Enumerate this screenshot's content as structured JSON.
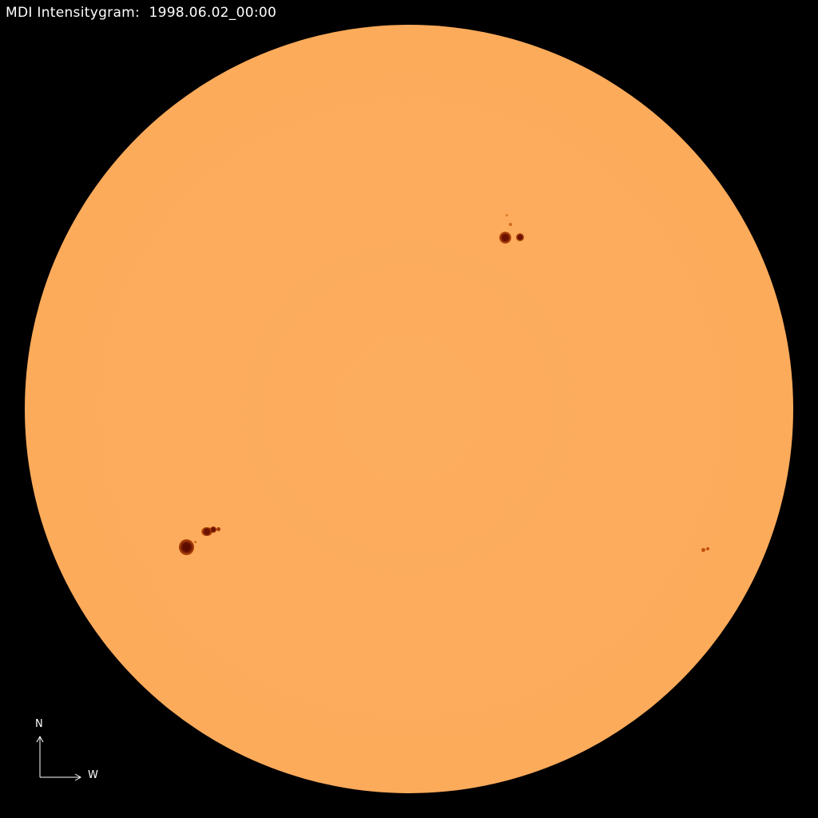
{
  "title": "MDI Intensitygram:  1998.06.02_00:00",
  "compass": {
    "north": "N",
    "west": "W"
  },
  "colors": {
    "background": "#000000",
    "photosphere": "#fcab5b",
    "sunspot_umbra": "#7a1a00",
    "sunspot_penumbra": "#c0500f",
    "text": "#ffffff"
  }
}
